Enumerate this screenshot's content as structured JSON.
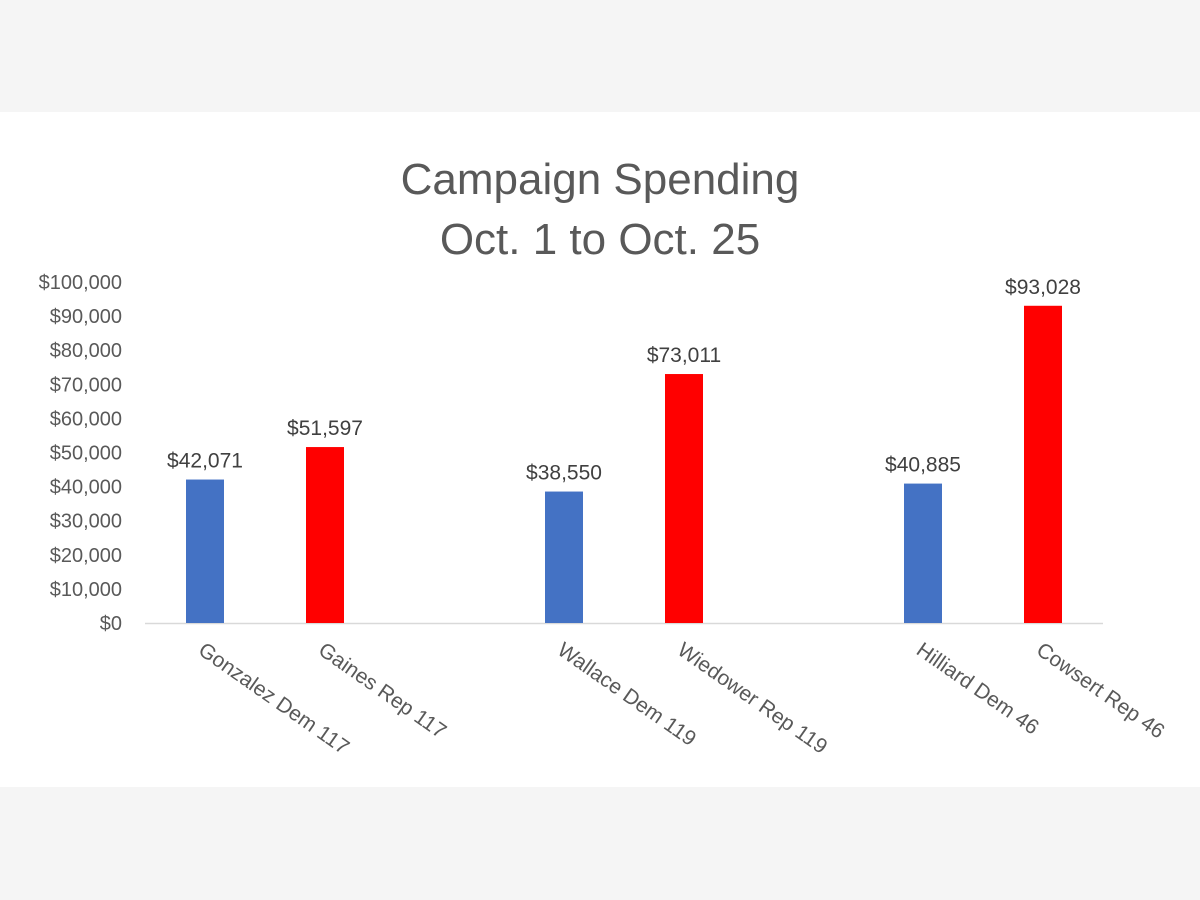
{
  "chart_data": {
    "type": "bar",
    "title": [
      "Campaign Spending",
      "Oct. 1 to Oct. 25"
    ],
    "categories": [
      "Gonzalez Dem 117",
      "Gaines Rep 117",
      "Wallace Dem 119",
      "Wiedower Rep 119",
      "Hilliard Dem 46",
      "Cowsert Rep 46"
    ],
    "values": [
      42071,
      51597,
      38550,
      73011,
      40885,
      93028
    ],
    "data_labels": [
      "$42,071",
      "$51,597",
      "$38,550",
      "$73,011",
      "$40,885",
      "$93,028"
    ],
    "bar_colors": [
      "#4472c4",
      "#ff0000",
      "#4472c4",
      "#ff0000",
      "#4472c4",
      "#ff0000"
    ],
    "ylim": [
      0,
      100000
    ],
    "y_ticks": [
      0,
      10000,
      20000,
      30000,
      40000,
      50000,
      60000,
      70000,
      80000,
      90000,
      100000
    ],
    "y_tick_labels": [
      "$0",
      "$10,000",
      "$20,000",
      "$30,000",
      "$40,000",
      "$50,000",
      "$60,000",
      "$70,000",
      "$80,000",
      "$90,000",
      "$100,000"
    ],
    "grid": false,
    "legend": "none",
    "xlabel": "",
    "ylabel": ""
  }
}
